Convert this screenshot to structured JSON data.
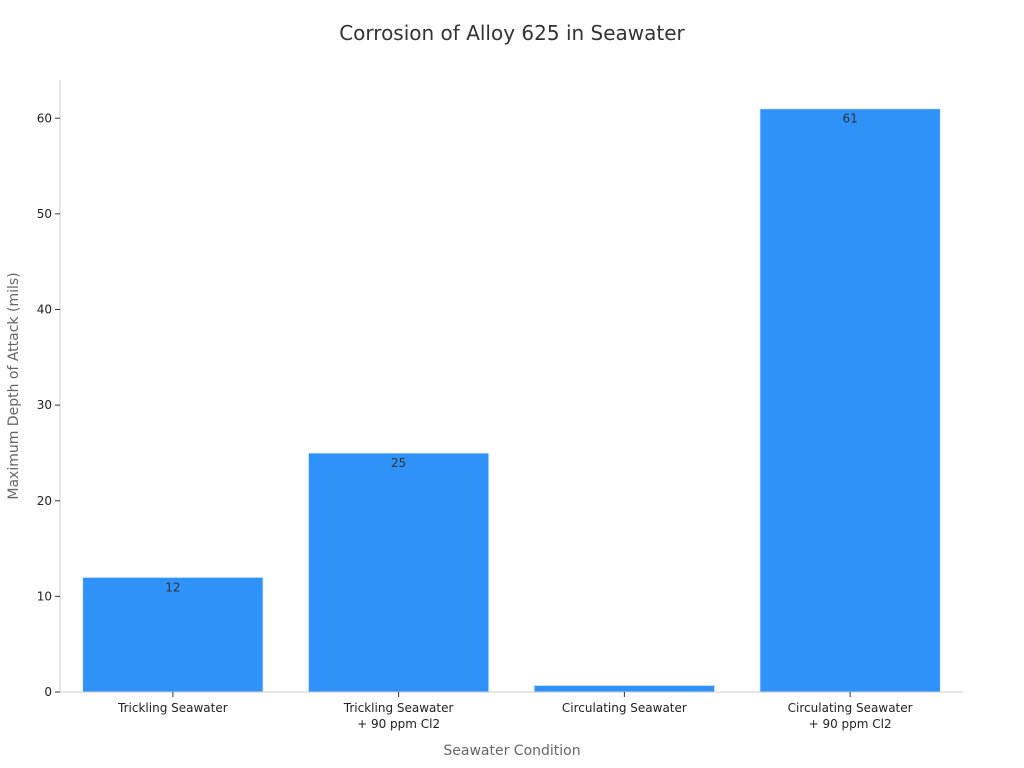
{
  "chart_data": {
    "type": "bar",
    "title": "Corrosion of Alloy 625 in Seawater",
    "xlabel": "Seawater Condition",
    "ylabel": "Maximum Depth of Attack (mils)",
    "categories": [
      [
        "Trickling Seawater"
      ],
      [
        "Trickling Seawater",
        "+ 90 ppm Cl2"
      ],
      [
        "Circulating Seawater"
      ],
      [
        "Circulating Seawater",
        "+ 90 ppm Cl2"
      ]
    ],
    "values": [
      12,
      25,
      0.7,
      61
    ],
    "data_labels": [
      "12",
      "25",
      "",
      "61"
    ],
    "ylim": [
      0,
      64
    ],
    "yticks": [
      0,
      10,
      20,
      30,
      40,
      50,
      60
    ],
    "grid": false,
    "bar_color": "#2f92f9",
    "axis_color": "#cccccc"
  }
}
